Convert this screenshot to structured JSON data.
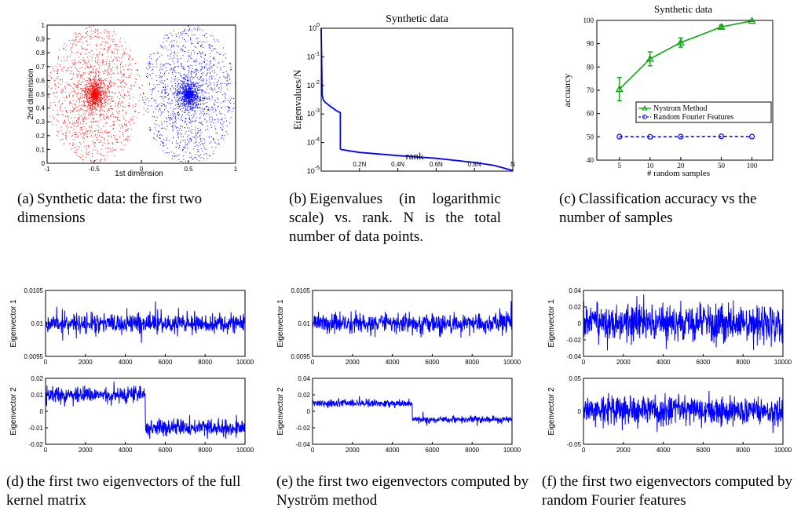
{
  "captions": {
    "a": {
      "tag": "(a)",
      "text": "Synthetic data: the first two dimensions"
    },
    "b": {
      "tag": "(b)",
      "text": "Eigenvalues (in logarithmic scale) vs. rank. N is the total number of data points."
    },
    "c": {
      "tag": "(c)",
      "text": "Classification accuracy vs the number of samples"
    },
    "d": {
      "tag": "(d)",
      "text": "the first two eigenvectors of the full kernel matrix"
    },
    "e": {
      "tag": "(e)",
      "text": "the first two eigenvectors computed by Nyström method"
    },
    "f": {
      "tag": "(f)",
      "text": "the first two eigenvectors computed by random Fourier features"
    }
  },
  "colors": {
    "red": "#ff0000",
    "blue": "#0000ff",
    "green": "#00a000",
    "axis": "#000000"
  },
  "chart_data": [
    {
      "id": "a",
      "type": "scatter",
      "xlabel": "1st dimension",
      "ylabel": "2nd dimension",
      "xlim": [
        -1,
        1
      ],
      "ylim": [
        0,
        1
      ],
      "xticks": [
        "-1",
        "-0.5",
        "0",
        "0.5",
        "1"
      ],
      "yticks": [
        "0",
        "0.1",
        "0.2",
        "0.3",
        "0.4",
        "0.5",
        "0.6",
        "0.7",
        "0.8",
        "0.9",
        "1"
      ],
      "series": [
        {
          "color": "red",
          "center": [
            -0.5,
            0.5
          ],
          "spread": [
            0.5,
            0.5
          ]
        },
        {
          "color": "blue",
          "center": [
            0.5,
            0.5
          ],
          "spread": [
            0.5,
            0.5
          ]
        }
      ]
    },
    {
      "id": "b",
      "type": "line",
      "title": "Synthetic data",
      "xlabel": "rank",
      "ylabel": "Eigenvalues/N",
      "yscale": "log",
      "xticks": [
        "0.2N",
        "0.4N",
        "0.6N",
        "0.8N",
        "N"
      ],
      "yticks": [
        "10^-5",
        "10^-4",
        "10^-3",
        "10^-2",
        "10^-1",
        "10^0"
      ],
      "series": [
        {
          "color": "blue",
          "x": [
            0,
            0.003,
            0.005,
            0.01,
            0.02,
            0.05,
            0.08,
            0.1,
            0.1,
            0.105,
            0.2,
            0.4,
            0.6,
            0.8,
            0.9,
            1.0
          ],
          "y": [
            1.0,
            0.05,
            0.005,
            0.0032,
            0.0026,
            0.0018,
            0.0013,
            0.0011,
            6e-05,
            5.7e-05,
            4.5e-05,
            3.5e-05,
            2.8e-05,
            2e-05,
            1.6e-05,
            1.05e-05
          ]
        }
      ]
    },
    {
      "id": "c",
      "type": "line",
      "title": "Synthetic data",
      "xlabel": "# random samples",
      "ylabel": "accuarcy",
      "xscale": "log",
      "ylim": [
        40,
        100
      ],
      "xticks": [
        "5",
        "10",
        "20",
        "50",
        "100"
      ],
      "yticks": [
        "40",
        "50",
        "60",
        "70",
        "80",
        "90",
        "100"
      ],
      "legend": "center-right",
      "series": [
        {
          "name": "Nystrom Method",
          "color": "green",
          "marker": "triangle",
          "x": [
            5,
            10,
            20,
            50,
            100
          ],
          "y": [
            70.5,
            83.5,
            90.5,
            97.2,
            99.8
          ],
          "err": [
            5,
            3,
            2,
            0.8,
            0.3
          ]
        },
        {
          "name": "Random Fourier Features",
          "color": "blue",
          "marker": "circle",
          "dashed": true,
          "x": [
            5,
            10,
            20,
            50,
            100
          ],
          "y": [
            50.1,
            50.0,
            50.1,
            50.2,
            50.1
          ],
          "err": [
            0,
            0,
            0,
            0,
            0
          ]
        }
      ]
    },
    {
      "id": "d",
      "type": "line",
      "subplots": [
        {
          "ylabel": "Eigenvector 1",
          "xlim": [
            0,
            10000
          ],
          "ylim": [
            0.0095,
            0.0105
          ],
          "xticks": [
            "0",
            "2000",
            "4000",
            "6000",
            "8000",
            "10000"
          ],
          "yticks": [
            "0.0095",
            "0.01",
            "0.0105"
          ],
          "level": 0.01,
          "noise": 0.00013,
          "step": false
        },
        {
          "ylabel": "Eigenvector 2",
          "xlim": [
            0,
            10000
          ],
          "ylim": [
            -0.02,
            0.02
          ],
          "xticks": [
            "0",
            "2000",
            "4000",
            "6000",
            "8000",
            "10000"
          ],
          "yticks": [
            "-0.02",
            "-0.01",
            "0",
            "0.01",
            "0.02"
          ],
          "level": 0.01,
          "noise": 0.0045,
          "step": true
        }
      ]
    },
    {
      "id": "e",
      "type": "line",
      "subplots": [
        {
          "ylabel": "Eigenvector 1",
          "xlim": [
            0,
            10000
          ],
          "ylim": [
            0.0095,
            0.0105
          ],
          "xticks": [
            "0",
            "2000",
            "4000",
            "6000",
            "8000",
            "10000"
          ],
          "yticks": [
            "0.0095",
            "0.01",
            "0.0105"
          ],
          "level": 0.01,
          "noise": 0.00013,
          "step": false
        },
        {
          "ylabel": "Eigenvector 2",
          "xlim": [
            0,
            10000
          ],
          "ylim": [
            -0.04,
            0.04
          ],
          "xticks": [
            "0",
            "2000",
            "4000",
            "6000",
            "8000",
            "10000"
          ],
          "yticks": [
            "-0.04",
            "-0.02",
            "0",
            "0.02",
            "0.04"
          ],
          "level": 0.01,
          "noise": 0.004,
          "step": true
        }
      ]
    },
    {
      "id": "f",
      "type": "line",
      "subplots": [
        {
          "ylabel": "Eigenvector 1",
          "xlim": [
            0,
            10000
          ],
          "ylim": [
            -0.04,
            0.04
          ],
          "xticks": [
            "0",
            "2000",
            "4000",
            "6000",
            "8000",
            "10000"
          ],
          "yticks": [
            "-0.04",
            "-0.02",
            "0",
            "0.02",
            "0.04"
          ],
          "level": 0,
          "noise": 0.02,
          "step": false
        },
        {
          "ylabel": "Eigenvector 2",
          "xlim": [
            0,
            10000
          ],
          "ylim": [
            -0.05,
            0.05
          ],
          "xticks": [
            "0",
            "2000",
            "4000",
            "6000",
            "8000",
            "10000"
          ],
          "yticks": [
            "-0.05",
            "0",
            "0.05"
          ],
          "level": 0,
          "noise": 0.02,
          "step": false
        }
      ]
    }
  ]
}
